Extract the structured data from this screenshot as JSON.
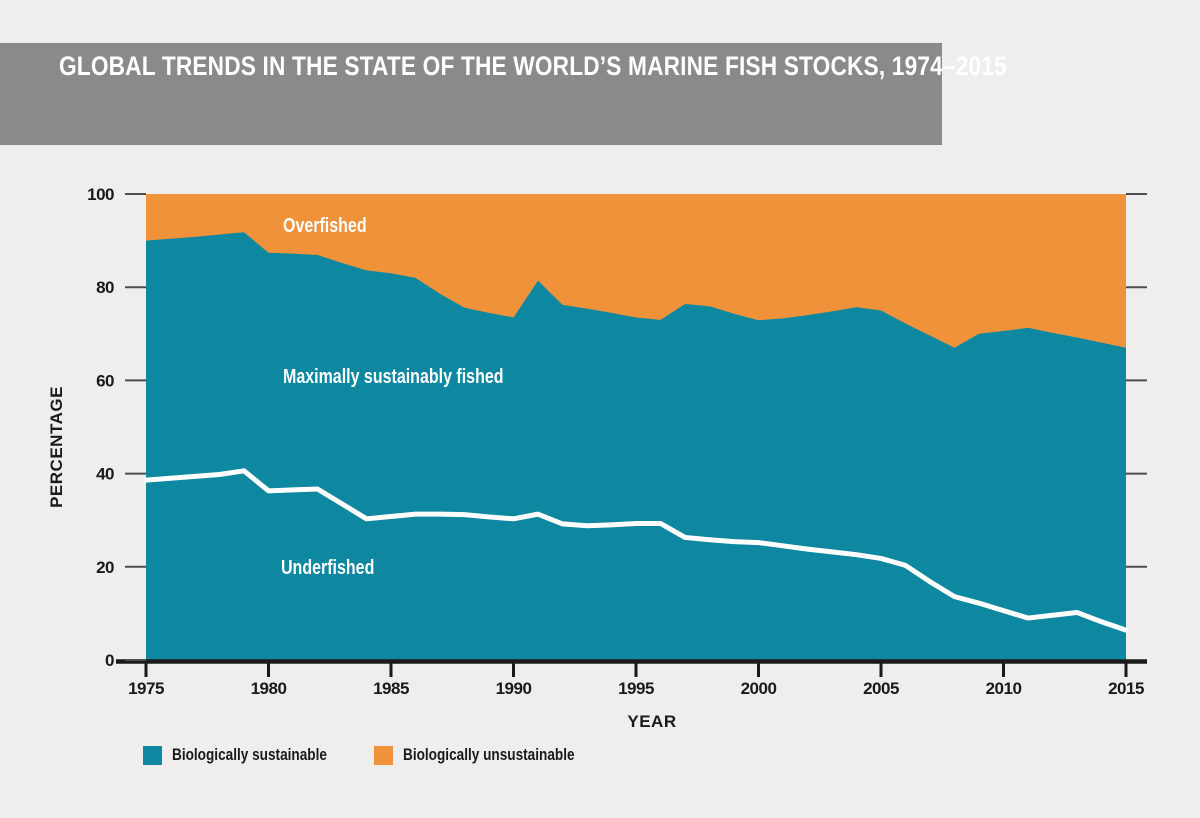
{
  "page": {
    "background": "#efeeec"
  },
  "header": {
    "title": "GLOBAL TRENDS IN THE STATE OF THE WORLD’S MARINE FISH STOCKS, 1974–2015",
    "bar_color": "#8b8a88",
    "text_color": "#ffffff"
  },
  "axes": {
    "x_label": "YEAR",
    "y_label": "PERCENTAGE"
  },
  "region_labels": {
    "overfished": "Overfished",
    "max_sustainable": "Maximally sustainably fished",
    "underfished": "Underfished"
  },
  "legend": [
    {
      "label": "Biologically sustainable",
      "color": "#0e87a0"
    },
    {
      "label": "Biologically unsustainable",
      "color": "#f0923a"
    }
  ],
  "colors": {
    "sustainable_area": "#0e87a0",
    "unsustainable_area": "#f0923a",
    "divider_line": "#ffffff",
    "axis": "#1a1a1a",
    "tick": "#4d4d4d",
    "background": "#efeeec"
  },
  "chart_data": {
    "type": "area",
    "title": "GLOBAL TRENDS IN THE STATE OF THE WORLD’S MARINE FISH STOCKS, 1974–2015",
    "xlabel": "YEAR",
    "ylabel": "PERCENTAGE",
    "xlim": [
      1975,
      2015
    ],
    "ylim": [
      0,
      100
    ],
    "x_ticks": [
      1975,
      1980,
      1985,
      1990,
      1995,
      2000,
      2005,
      2010,
      2015
    ],
    "y_ticks": [
      0,
      20,
      40,
      60,
      80,
      100
    ],
    "grid": false,
    "legend_position": "bottom",
    "years": [
      1975,
      1976,
      1977,
      1978,
      1979,
      1980,
      1981,
      1982,
      1983,
      1984,
      1985,
      1986,
      1987,
      1988,
      1989,
      1990,
      1991,
      1992,
      1993,
      1994,
      1995,
      1996,
      1997,
      1998,
      1999,
      2000,
      2001,
      2002,
      2003,
      2004,
      2005,
      2006,
      2007,
      2008,
      2009,
      2010,
      2011,
      2012,
      2013,
      2014,
      2015
    ],
    "series": [
      {
        "id": "sustainable",
        "name": "Biologically sustainable (total, % of stocks; upper boundary of teal area)",
        "color": "#0e87a0",
        "role": "stacked-area-teal",
        "values": [
          90.0,
          90.4,
          90.8,
          91.3,
          91.8,
          87.4,
          87.2,
          86.9,
          85.2,
          83.6,
          83.0,
          82.0,
          78.6,
          75.6,
          74.5,
          73.5,
          81.4,
          76.2,
          75.4,
          74.5,
          73.5,
          73.0,
          76.4,
          75.9,
          74.3,
          72.9,
          73.3,
          74.0,
          74.8,
          75.7,
          75.0,
          72.2,
          69.6,
          67.0,
          70.0,
          70.6,
          71.3,
          70.2,
          69.2,
          68.1,
          67.0
        ]
      },
      {
        "id": "overfished",
        "name": "Biologically unsustainable / Overfished (% of stocks; orange area)",
        "color": "#f0923a",
        "role": "stacked-area-orange",
        "values": [
          10.0,
          9.6,
          9.2,
          8.7,
          8.2,
          12.6,
          12.8,
          13.1,
          14.8,
          16.4,
          17.0,
          18.0,
          21.4,
          24.4,
          25.5,
          26.5,
          18.6,
          23.8,
          24.6,
          25.5,
          26.5,
          27.0,
          23.6,
          24.1,
          25.7,
          27.1,
          26.7,
          26.0,
          25.2,
          24.3,
          25.0,
          27.8,
          30.4,
          33.0,
          30.0,
          29.4,
          28.7,
          29.8,
          30.8,
          31.9,
          33.0
        ]
      },
      {
        "id": "underfished",
        "name": "Underfished (% of stocks; white divider line, below = underfished, above = maximally sustainably fished)",
        "color": "#ffffff",
        "role": "line",
        "values": [
          38.6,
          39.0,
          39.4,
          39.8,
          40.6,
          36.3,
          36.5,
          36.7,
          33.5,
          30.3,
          30.8,
          31.3,
          31.3,
          31.2,
          30.7,
          30.3,
          31.3,
          29.2,
          28.8,
          29.0,
          29.3,
          29.3,
          26.3,
          25.8,
          25.4,
          25.2,
          24.5,
          23.8,
          23.2,
          22.6,
          21.8,
          20.3,
          16.8,
          13.6,
          12.2,
          10.6,
          9.0,
          9.6,
          10.2,
          8.2,
          6.4
        ]
      }
    ]
  }
}
